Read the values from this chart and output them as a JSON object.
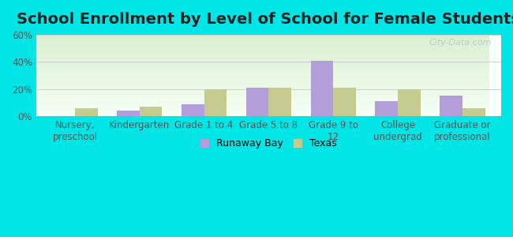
{
  "title": "School Enrollment by Level of School for Female Students",
  "categories": [
    "Nursery,\npreschool",
    "Kindergarten",
    "Grade 1 to 4",
    "Grade 5 to 8",
    "Grade 9 to\n12",
    "College\nundergrad",
    "Graduate or\nprofessional"
  ],
  "runaway_bay": [
    0,
    4,
    9,
    21,
    41,
    11,
    15
  ],
  "texas": [
    6,
    7,
    20,
    21,
    21,
    20,
    6
  ],
  "runaway_bay_color": "#b39ddb",
  "texas_color": "#c5ca8e",
  "background_color": "#00e5e5",
  "ylim": [
    0,
    60
  ],
  "yticks": [
    0,
    20,
    40,
    60
  ],
  "ytick_labels": [
    "0%",
    "20%",
    "40%",
    "60%"
  ],
  "legend_labels": [
    "Runaway Bay",
    "Texas"
  ],
  "bar_width": 0.35,
  "title_fontsize": 14,
  "tick_fontsize": 8.5,
  "legend_fontsize": 9,
  "watermark": "City-Data.com"
}
